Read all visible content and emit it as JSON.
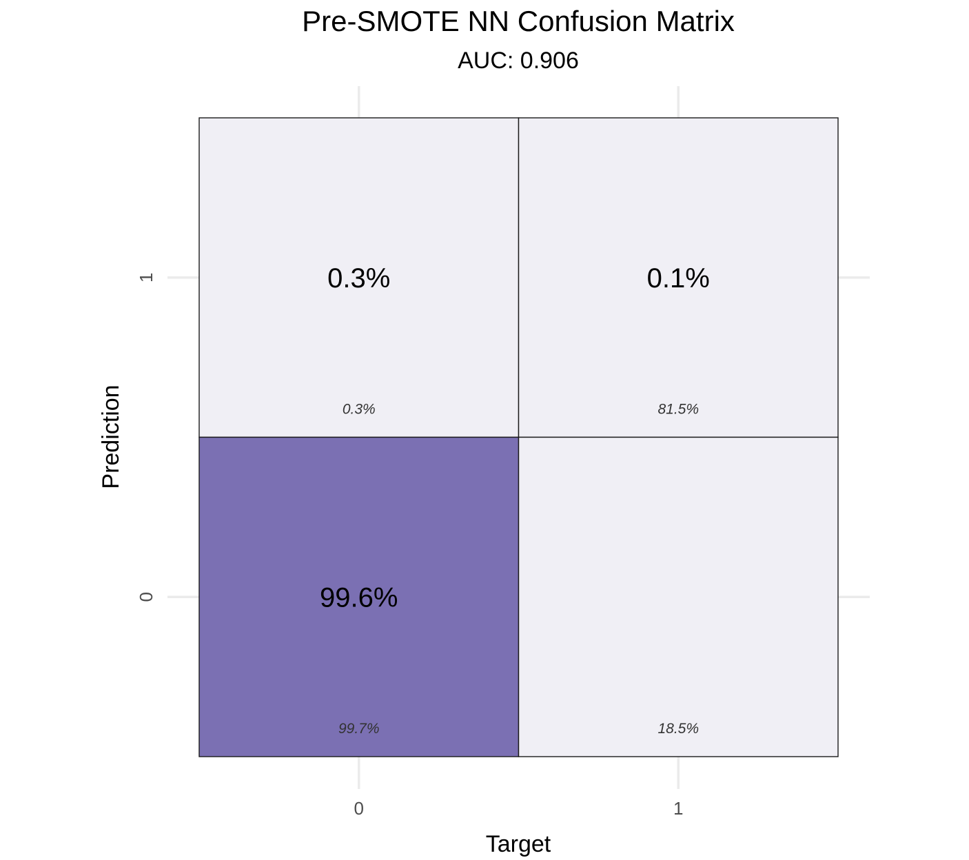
{
  "chart_data": {
    "type": "heatmap",
    "title": "Pre-SMOTE NN Confusion Matrix",
    "subtitle": "AUC: 0.906",
    "xlabel": "Target",
    "ylabel": "Prediction",
    "x_categories": [
      "0",
      "1"
    ],
    "y_categories": [
      "0",
      "1"
    ],
    "grid": true,
    "colors": {
      "low": "#f0eff5",
      "high": "#7b70b3"
    },
    "cells": [
      {
        "target": "0",
        "prediction": "1",
        "value": 0.3,
        "label": "0.3%",
        "sub_label": "0.3%",
        "sub_value": 0.3
      },
      {
        "target": "1",
        "prediction": "1",
        "value": 0.1,
        "label": "0.1%",
        "sub_label": "81.5%",
        "sub_value": 81.5
      },
      {
        "target": "0",
        "prediction": "0",
        "value": 99.6,
        "label": "99.6%",
        "sub_label": "99.7%",
        "sub_value": 99.7
      },
      {
        "target": "1",
        "prediction": "0",
        "value": 0.0,
        "label": "",
        "sub_label": "18.5%",
        "sub_value": 18.5
      }
    ]
  }
}
